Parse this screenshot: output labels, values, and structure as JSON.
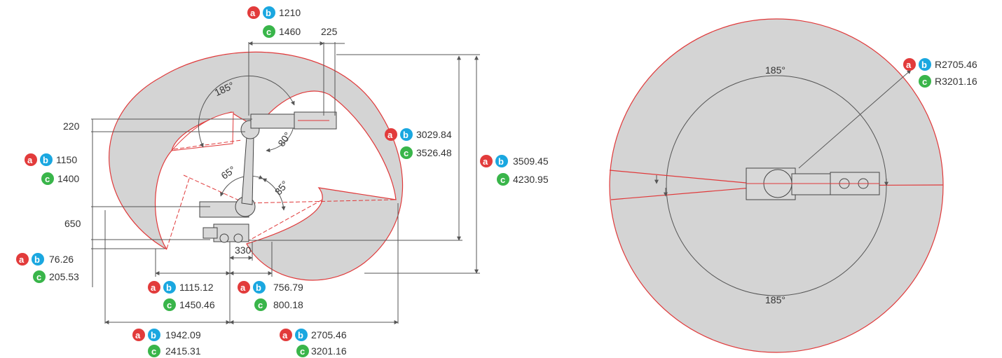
{
  "colors": {
    "envelope_fill": "#d4d4d4",
    "envelope_edge": "#e0393a",
    "badge_a": "#e23b3b",
    "badge_b": "#1aa7e0",
    "badge_c": "#39b54a",
    "dim_line": "#555555"
  },
  "badges": {
    "a": "a",
    "b": "b",
    "c": "c"
  },
  "side_view": {
    "top": {
      "ab": "1210",
      "c": "1460",
      "plain": "225"
    },
    "left_220": "220",
    "left_ab_1150": "1150",
    "left_c_1400": "1400",
    "left_650": "650",
    "left_ab_76": "76.26",
    "left_c_205": "205.53",
    "right_ab_3029": "3029.84",
    "right_c_3526": "3526.48",
    "right_ab_3509": "3509.45",
    "right_c_4230": "4230.95",
    "bottom_330": "330",
    "bottom_ab_1115": "1115.12",
    "bottom_c_1450": "1450.46",
    "bottom_ab_756": "756.79",
    "bottom_c_800": "800.18",
    "bottom_ab_1942": "1942.09",
    "bottom_c_2415": "2415.31",
    "bottom_ab_2705": "2705.46",
    "bottom_c_3201": "3201.16",
    "angle_185": "185°",
    "angle_80": "80°",
    "angle_65": "65°",
    "angle_85": "85°"
  },
  "top_view": {
    "angle_top": "185°",
    "angle_bottom": "185°",
    "radius_ab": "R2705.46",
    "radius_c": "R3201.16"
  }
}
